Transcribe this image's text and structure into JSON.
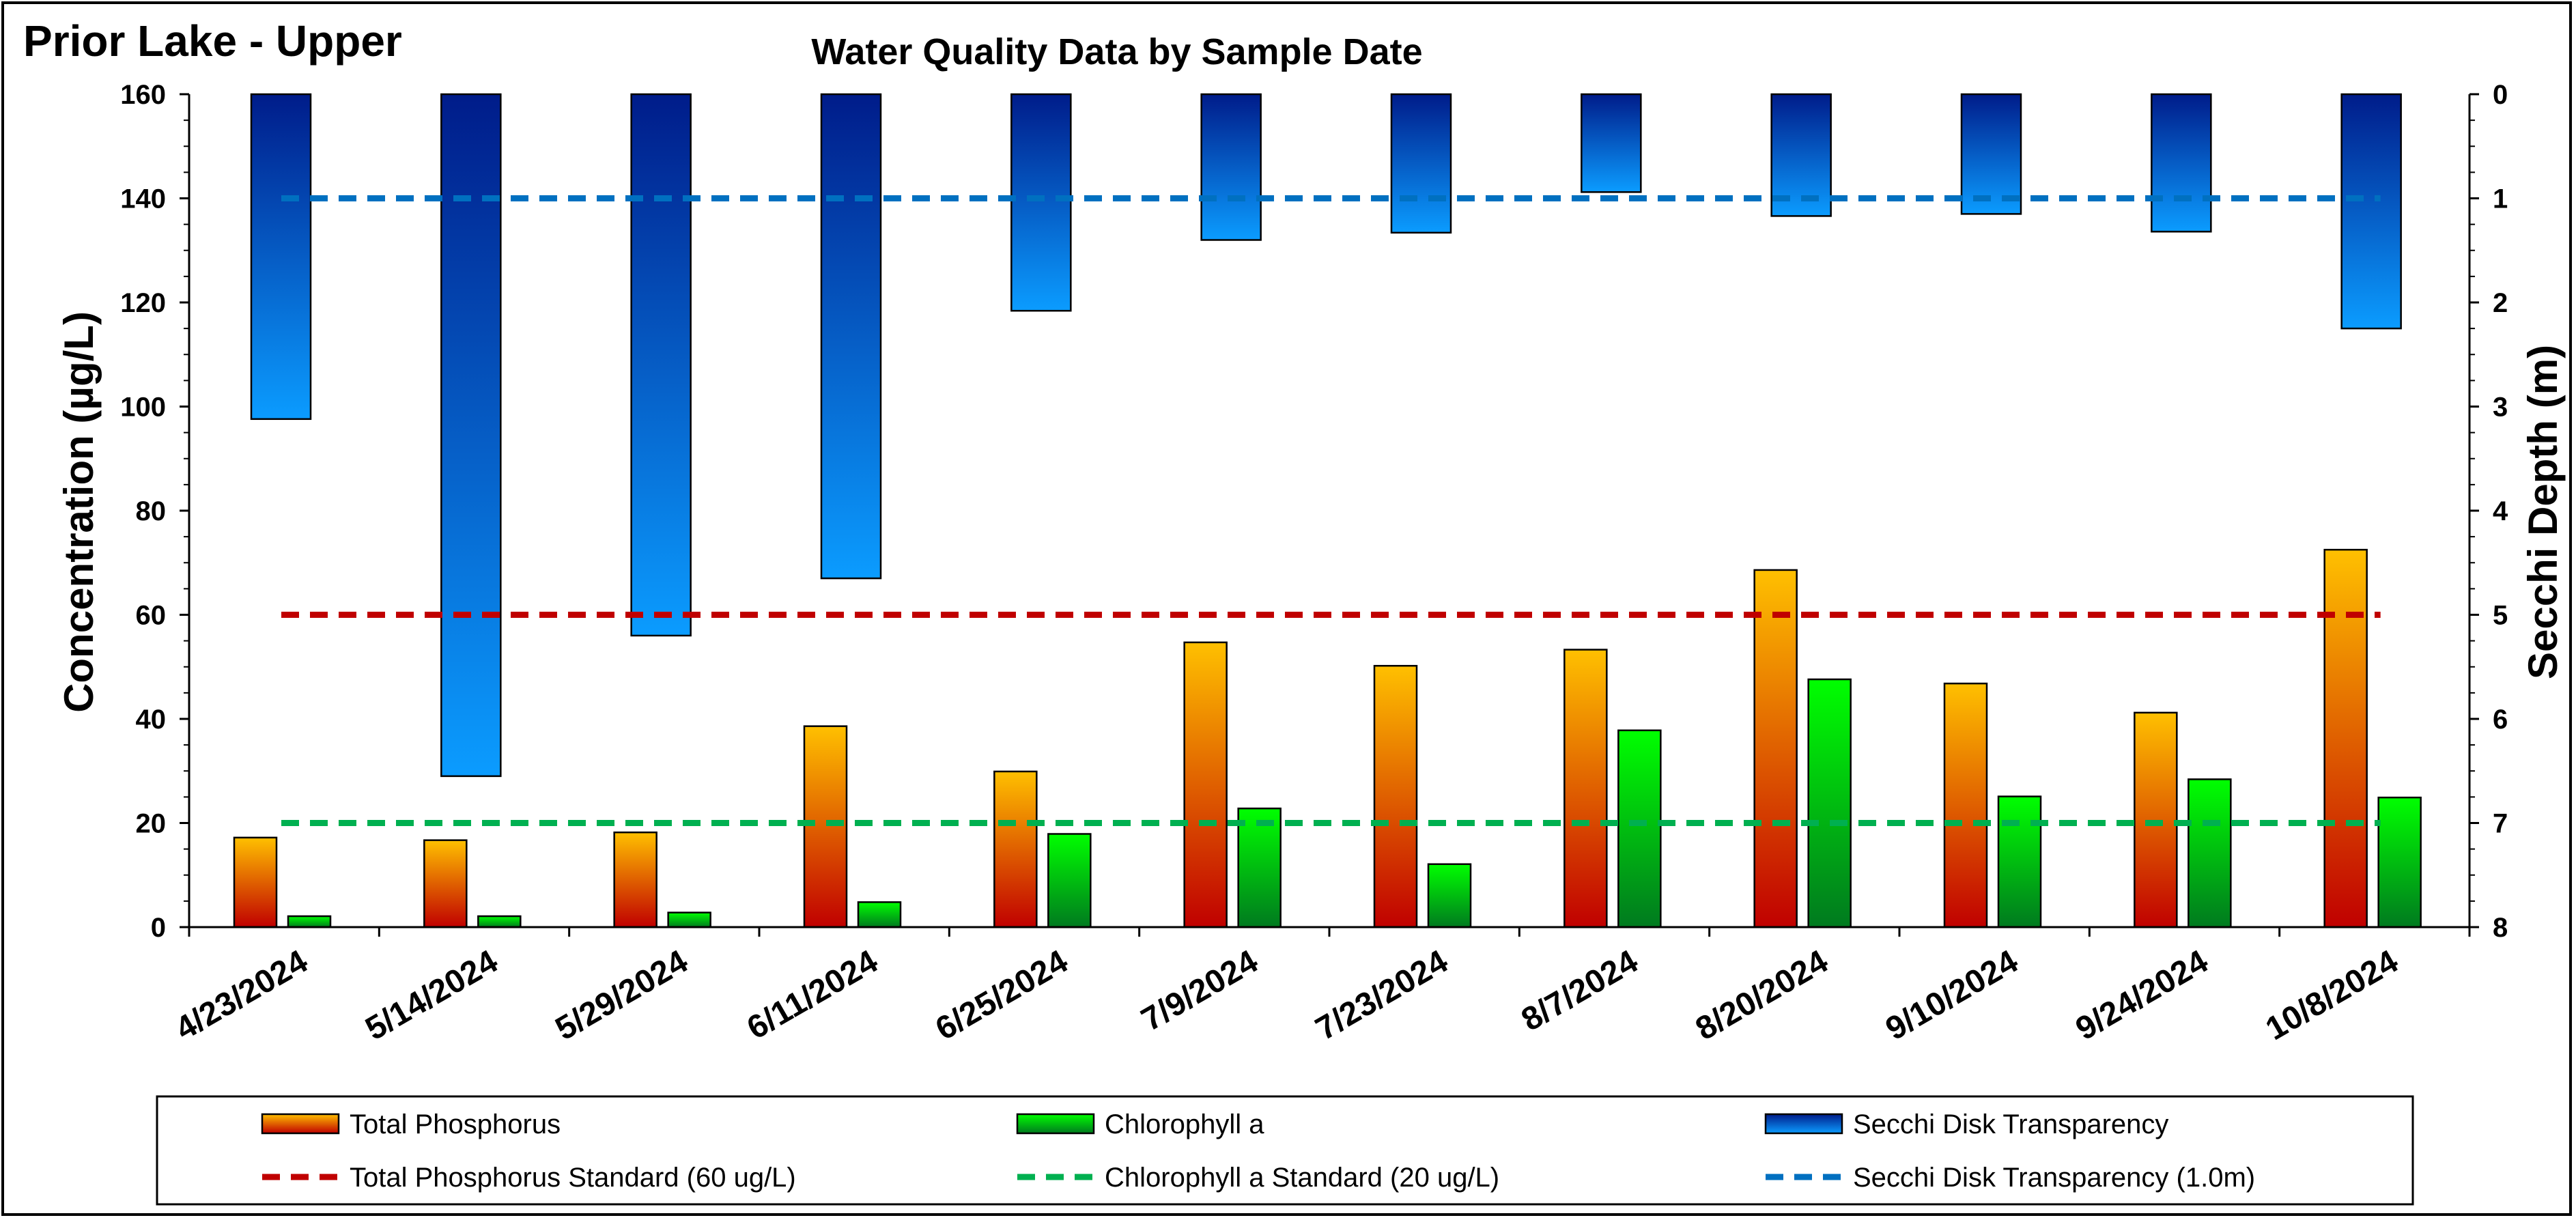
{
  "chart_data": {
    "type": "bar",
    "site_title": "Prior Lake - Upper",
    "title": "Water Quality Data by Sample Date",
    "ylabel": "Concentration (µg/L)",
    "y2label": "Secchi Depth (m)",
    "ylim": [
      0,
      160
    ],
    "y_ticks": [
      0,
      20,
      40,
      60,
      80,
      100,
      120,
      140,
      160
    ],
    "y2lim": [
      0,
      8
    ],
    "y2_inverted": true,
    "y2_ticks": [
      0,
      1,
      2,
      3,
      4,
      5,
      6,
      7,
      8
    ],
    "grid": false,
    "legend_position": "bottom",
    "categories": [
      "4/23/2024",
      "5/14/2024",
      "5/29/2024",
      "6/11/2024",
      "6/25/2024",
      "7/9/2024",
      "7/23/2024",
      "8/7/2024",
      "8/20/2024",
      "9/10/2024",
      "9/24/2024",
      "10/8/2024"
    ],
    "series": [
      {
        "name": "Total Phosphorus",
        "axis": "left",
        "colors": [
          "#FFC000",
          "#C00000"
        ],
        "values": [
          17.2,
          16.7,
          18.2,
          38.6,
          29.9,
          54.7,
          50.2,
          53.3,
          68.6,
          46.8,
          41.2,
          72.5
        ]
      },
      {
        "name": "Chlorophyll a",
        "axis": "left",
        "colors": [
          "#00FF00",
          "#007A1F"
        ],
        "values": [
          2.1,
          2.1,
          2.8,
          4.8,
          17.9,
          22.8,
          12.1,
          37.8,
          47.6,
          25.1,
          28.4,
          24.9
        ]
      },
      {
        "name": "Secchi Disk Transparency",
        "axis": "right",
        "colors": [
          "#001C8A",
          "#0B9CFF"
        ],
        "values": [
          3.12,
          6.55,
          5.2,
          4.65,
          2.08,
          1.4,
          1.33,
          0.94,
          1.17,
          1.15,
          1.32,
          2.25
        ]
      }
    ],
    "reference_lines": [
      {
        "name": "Total Phosphorus Standard (60 ug/L)",
        "axis": "left",
        "value": 60,
        "color": "#C00000"
      },
      {
        "name": "Chlorophyll a Standard (20 ug/L)",
        "axis": "left",
        "value": 20,
        "color": "#00B050"
      },
      {
        "name": "Secchi Disk Transparency (1.0m)",
        "axis": "right",
        "value": 1.0,
        "color": "#0070C0"
      }
    ]
  }
}
